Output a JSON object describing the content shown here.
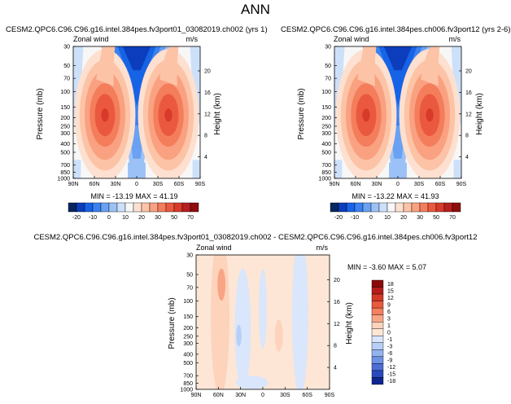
{
  "chart_data": {
    "type": "contour",
    "title": "ANN",
    "panels": [
      {
        "id": "p1",
        "case_title": "CESM2.QPC6.C96.C96.g16.intel.384pes.fv3port01_03082019.ch002 (yrs 1)",
        "variable": "Zonal wind",
        "units": "m/s",
        "ylabel": "Pressure (mb)",
        "ylabel_right": "Height (km)",
        "min_max_label": "MIN = -13.19  MAX =  41.19",
        "colorbar_labels": [
          "-20",
          "-10",
          "0",
          "10",
          "20",
          "30",
          "50",
          "70"
        ]
      },
      {
        "id": "p2",
        "case_title": "CESM2.QPC6.C96.C96.g16.intel.384pes.ch006.fv3port12 (yrs 2-6)",
        "variable": "Zonal wind",
        "units": "m/s",
        "ylabel": "Pressure (mb)",
        "ylabel_right": "Height (km)",
        "min_max_label": "MIN = -13.22  MAX =  41.93",
        "colorbar_labels": [
          "-20",
          "-10",
          "0",
          "10",
          "20",
          "30",
          "50",
          "70"
        ]
      },
      {
        "id": "p3",
        "case_title": "CESM2.QPC6.C96.C96.g16.intel.384pes.fv3port01_03082019.ch002 - CESM2.QPC6.C96.C96.g16.intel.384pes.ch006.fv3port12",
        "variable": "Zonal wind",
        "units": "m/s",
        "ylabel": "Pressure (mb)",
        "ylabel_right": "Height (km)",
        "min_max_label": "MIN = -3.60  MAX =  5.07",
        "colorbar_labels": [
          "18",
          "15",
          "12",
          "9",
          "6",
          "3",
          "1",
          "0",
          "-1",
          "-3",
          "-6",
          "-9",
          "-12",
          "-15",
          "-18"
        ]
      }
    ],
    "x_ticks": [
      "90N",
      "60N",
      "30N",
      "0",
      "30S",
      "60S",
      "90S"
    ],
    "pressure_ticks": [
      "30",
      "50",
      "70",
      "100",
      "150",
      "200",
      "250",
      "300",
      "400",
      "500",
      "700",
      "850",
      "1000"
    ],
    "height_ticks": [
      "20",
      "16",
      "12",
      "8",
      "4"
    ],
    "colors": {
      "full": [
        "#07255f",
        "#0c3dbc",
        "#1763e6",
        "#3b82f0",
        "#6aa1f2",
        "#9cc1f6",
        "#cde0f9",
        "#f7f7f7",
        "#fde0cf",
        "#fcc3a6",
        "#f9a180",
        "#f47d5c",
        "#ea593f",
        "#d83a2a",
        "#b81f1f",
        "#8f0d0d"
      ],
      "diff": [
        "#8a0a0a",
        "#b61c1c",
        "#d63828",
        "#ea5a3c",
        "#f58060",
        "#f9a585",
        "#fdd3bc",
        "#fde6d6",
        "#d9e6fb",
        "#b7cff8",
        "#93b3f1",
        "#6f92e6",
        "#4d6ed6",
        "#2a49be",
        "#0e2691"
      ]
    }
  }
}
